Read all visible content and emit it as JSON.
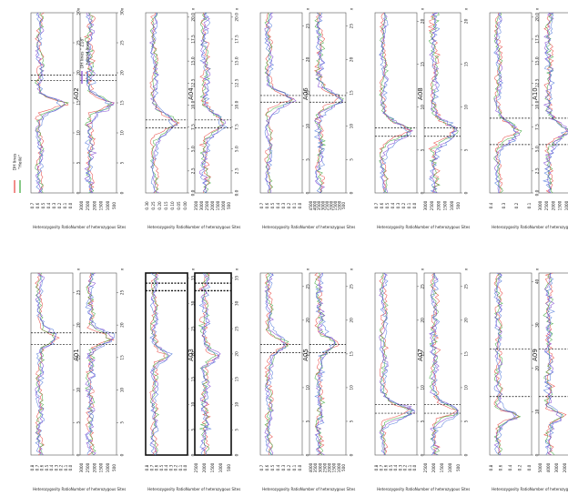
{
  "legend": {
    "items": [
      {
        "name": "DH lines\n\"Heilé\"",
        "lines": [
          "DH lines",
          "\"Heilé\""
        ],
        "colors": [
          "#e8413c",
          "#3aa63a"
        ]
      },
      {
        "name": "DH lines \"Z18\"\nhybrid lines",
        "lines": [
          "DH lines \" Z18\"",
          "hybrid lines"
        ],
        "colors": [
          "#7b3fd0",
          "#4a74d8"
        ]
      }
    ]
  },
  "labels": {
    "ratio": "Heterozygosity Ratio",
    "size": "Number of heterozygous Sites"
  },
  "colors": {
    "red": "#e8413c",
    "green": "#3aa63a",
    "purple": "#7b3fd0",
    "blue": "#4a74d8",
    "axis": "#555555",
    "highlight": "#111111"
  },
  "chart_data": [
    {
      "type": "line",
      "title": "A01",
      "x_ticks": [
        "0",
        "5",
        "10",
        "15",
        "20",
        "25"
      ],
      "x_max": 28,
      "ratio_ticks": [
        "0.8",
        "0.7",
        "0.6",
        "0.5",
        "0.4",
        "0.3",
        "0.2",
        "0.1",
        "0.0"
      ],
      "size_ticks": [
        "3000",
        "2500",
        "2000",
        "1500",
        "1000",
        "500"
      ],
      "highlights": [
        17.0,
        18.8
      ],
      "peak_at": 18.0,
      "peak_ratio": 0.55,
      "peak_size": 0.8
    },
    {
      "type": "line",
      "title": "A02",
      "x_ticks": [
        "0",
        "5",
        "10",
        "15",
        "20",
        "25",
        "30"
      ],
      "x_max": 30,
      "ratio_ticks": [
        "0.7",
        "0.6",
        "0.5",
        "0.4",
        "0.3",
        "0.2",
        "0.1",
        "0.0"
      ],
      "size_ticks": [
        "3000",
        "2500",
        "2000",
        "1500",
        "1000",
        "500"
      ],
      "highlights": [
        18.7,
        19.6
      ],
      "peak_at": 14.8,
      "peak_ratio": 0.7,
      "peak_size": 0.75
    },
    {
      "type": "line",
      "title": "A03",
      "x_ticks": [
        "0",
        "5",
        "10",
        "15",
        "20",
        "25",
        "30",
        "35"
      ],
      "x_max": 36,
      "ratio_ticks": [
        "0.8",
        "0.7",
        "0.6",
        "0.5",
        "0.4",
        "0.3",
        "0.2",
        "0.1",
        "0.0"
      ],
      "size_ticks": [
        "2500",
        "2000",
        "1500",
        "1000",
        "500"
      ],
      "highlights": [
        32.5,
        34.0
      ],
      "peak_at": 19.5,
      "peak_ratio": 0.4,
      "peak_size": 0.45,
      "boxed": true
    },
    {
      "type": "line",
      "title": "A04",
      "x_ticks": [
        "0.0",
        "2.5",
        "5.0",
        "7.5",
        "10.0",
        "12.5",
        "15.0",
        "17.5",
        "20.0"
      ],
      "x_max": 20.5,
      "ratio_ticks": [
        "0.30",
        "0.25",
        "0.20",
        "0.15",
        "0.10",
        "0.05",
        "0.00"
      ],
      "size_ticks": [
        "3500",
        "3000",
        "2500",
        "2000",
        "1500",
        "1000",
        "500"
      ],
      "highlights": [
        7.4,
        8.3
      ],
      "peak_at": 8.0,
      "peak_ratio": 0.6,
      "peak_size": 0.65
    },
    {
      "type": "line",
      "title": "A05",
      "x_ticks": [
        "0",
        "5",
        "10",
        "15",
        "20",
        "25"
      ],
      "x_max": 27,
      "ratio_ticks": [
        "0.7",
        "0.6",
        "0.5",
        "0.4",
        "0.3",
        "0.2",
        "0.1",
        "0.0"
      ],
      "size_ticks": [
        "4000",
        "3500",
        "3000",
        "2500",
        "2000",
        "1500",
        "1000",
        "500"
      ],
      "highlights": [
        15.2,
        16.4
      ],
      "peak_at": 16.5,
      "peak_ratio": 0.55,
      "peak_size": 0.6
    },
    {
      "type": "line",
      "title": "A06",
      "x_ticks": [
        "0",
        "5",
        "10",
        "15",
        "20",
        "25"
      ],
      "x_max": 27,
      "ratio_ticks": [
        "0.7",
        "0.6",
        "0.5",
        "0.4",
        "0.3",
        "0.2",
        "0.1",
        "0.0"
      ],
      "size_ticks": [
        "4500",
        "4000",
        "3500",
        "3000",
        "2500",
        "2000",
        "1500",
        "1000",
        "500"
      ],
      "highlights": [
        13.6,
        14.6
      ],
      "peak_at": 14.0,
      "peak_ratio": 0.7,
      "peak_size": 0.75
    },
    {
      "type": "line",
      "title": "A07",
      "x_ticks": [
        "0",
        "5",
        "10",
        "15",
        "20",
        "25"
      ],
      "x_max": 27,
      "ratio_ticks": [
        "0.8",
        "0.7",
        "0.6",
        "0.5",
        "0.4",
        "0.3",
        "0.2",
        "0.1",
        "0.0"
      ],
      "size_ticks": [
        "2500",
        "2000",
        "1500",
        "1000",
        "500"
      ],
      "highlights": [
        6.2,
        7.5
      ],
      "peak_at": 6.5,
      "peak_ratio": 0.85,
      "peak_size": 0.85
    },
    {
      "type": "line",
      "title": "A08",
      "x_ticks": [
        "0",
        "5",
        "10",
        "15",
        "20"
      ],
      "x_max": 21,
      "ratio_ticks": [
        "0.7",
        "0.6",
        "0.5",
        "0.4",
        "0.3",
        "0.2",
        "0.1",
        "0.0"
      ],
      "size_ticks": [
        "3000",
        "2500",
        "2000",
        "1500",
        "1000",
        "500"
      ],
      "highlights": [
        6.6,
        7.6
      ],
      "peak_at": 7.2,
      "peak_ratio": 0.7,
      "peak_size": 0.75
    },
    {
      "type": "line",
      "title": "A09",
      "x_ticks": [
        "0",
        "10",
        "20",
        "30",
        "40"
      ],
      "x_max": 42,
      "ratio_ticks": [
        "0.8",
        "0.6",
        "0.4",
        "0.2",
        "0.0"
      ],
      "size_ticks": [
        "5000",
        "4000",
        "3000",
        "2000",
        "1000"
      ],
      "highlights": [
        13.5,
        24.5
      ],
      "peak_at": 9.0,
      "peak_ratio": 0.6,
      "peak_size": 0.5
    },
    {
      "type": "line",
      "title": "A10",
      "x_ticks": [
        "0.0",
        "2.5",
        "5.0",
        "7.5",
        "10.0",
        "12.5",
        "15.0",
        "17.5",
        "20.0"
      ],
      "x_max": 20.5,
      "ratio_ticks": [
        "0.4",
        "0.3",
        "0.2",
        "0.1"
      ],
      "size_ticks": [
        "3000",
        "2500",
        "2000",
        "1500",
        "1000",
        "500"
      ],
      "highlights": [
        5.5,
        8.5
      ],
      "peak_at": 7.0,
      "peak_ratio": 0.55,
      "peak_size": 0.6
    }
  ]
}
